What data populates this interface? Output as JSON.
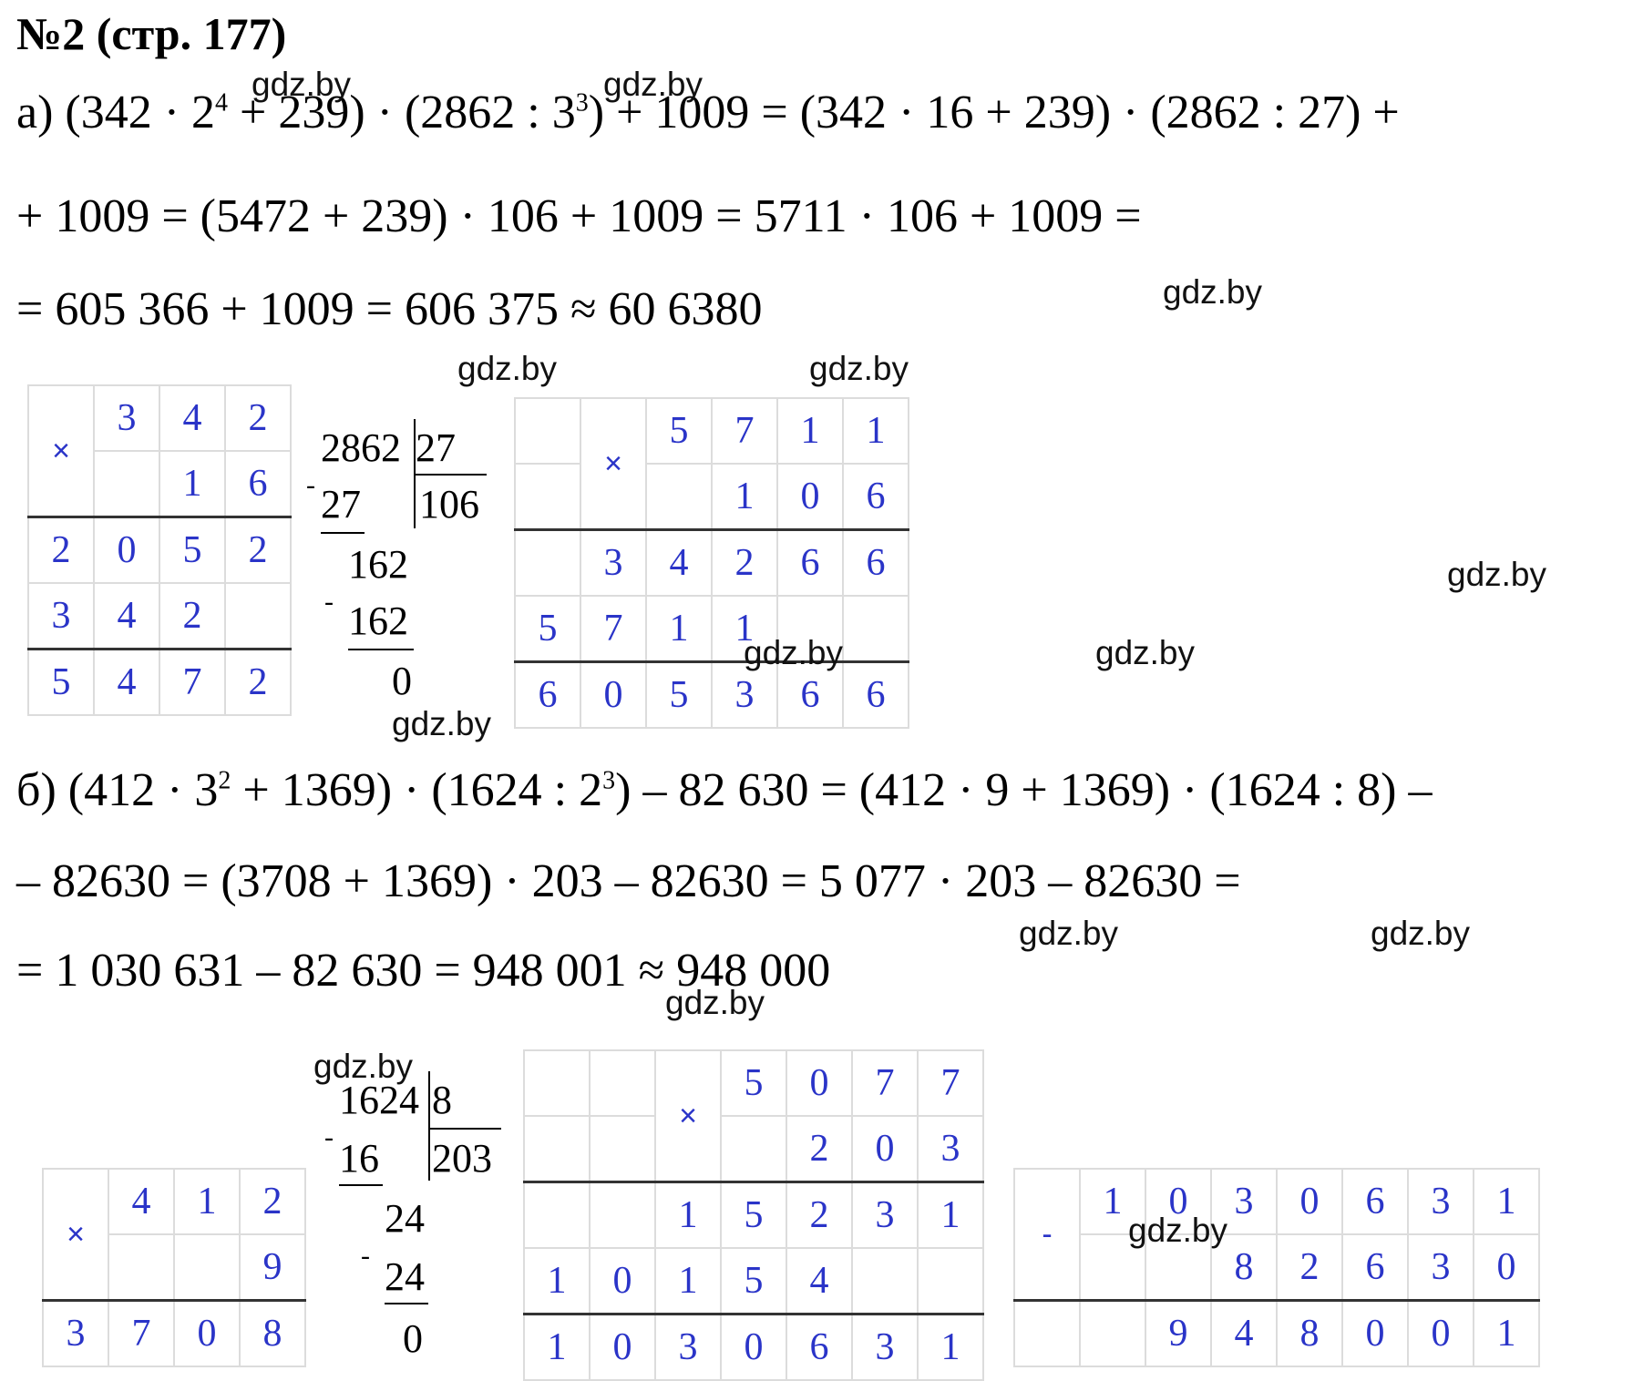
{
  "title": "№2 (стр. 177)",
  "watermark": "gdz.by",
  "part_a": {
    "line1": {
      "p1": "а) (342 · 2",
      "e1": "4",
      "p2": " + 239) · (2862 : 3",
      "e2": "3",
      "p3": ") + 1009 = (342 · 16 + 239) · (2862 : 27) +"
    },
    "line2": "+ 1009 = (5472 + 239) · 106 + 1009 = 5711 · 106 + 1009 =",
    "line3": "= 605 366 + 1009 = 606 375 ≈ 60 6380",
    "mult1": {
      "sign": "×",
      "rows": [
        [
          "",
          "3",
          "4",
          "2"
        ],
        [
          "",
          "",
          "1",
          "6"
        ],
        [
          "2",
          "0",
          "5",
          "2"
        ],
        [
          "3",
          "4",
          "2",
          ""
        ],
        [
          "5",
          "4",
          "7",
          "2"
        ]
      ]
    },
    "division": {
      "dividend": "2862",
      "divisor": "27",
      "quotient": "106",
      "s1": "27",
      "r1": "162",
      "s2": "162",
      "rem": "0",
      "minus": "-"
    },
    "mult2": {
      "sign": "×",
      "rows": [
        [
          "",
          "",
          "5",
          "7",
          "1",
          "1"
        ],
        [
          "",
          "",
          "",
          "1",
          "0",
          "6"
        ],
        [
          "",
          "3",
          "4",
          "2",
          "6",
          "6"
        ],
        [
          "5",
          "7",
          "1",
          "1",
          "",
          ""
        ],
        [
          "6",
          "0",
          "5",
          "3",
          "6",
          "6"
        ]
      ]
    }
  },
  "part_b": {
    "line1": {
      "p1": "б) (412 · 3",
      "e1": "2",
      "p2": " + 1369) · (1624 : 2",
      "e2": "3",
      "p3": ") – 82 630 = (412 · 9 + 1369) · (1624 : 8) –"
    },
    "line2": "– 82630 = (3708 + 1369) · 203 – 82630 = 5 077 · 203 – 82630 =",
    "line3": "= 1 030 631 – 82 630 = 948 001 ≈ 948 000",
    "mult1": {
      "sign": "×",
      "rows": [
        [
          "",
          "4",
          "1",
          "2"
        ],
        [
          "",
          "",
          "",
          "9"
        ],
        [
          "3",
          "7",
          "0",
          "8"
        ]
      ]
    },
    "division": {
      "dividend": "1624",
      "divisor": "8",
      "quotient": "203",
      "s1": "16",
      "r1": "24",
      "s2": "24",
      "rem": "0",
      "minus": "-"
    },
    "mult2": {
      "sign": "×",
      "rows": [
        [
          "",
          "",
          "",
          "5",
          "0",
          "7",
          "7"
        ],
        [
          "",
          "",
          "",
          "",
          "2",
          "0",
          "3"
        ],
        [
          "",
          "",
          "1",
          "5",
          "2",
          "3",
          "1"
        ],
        [
          "1",
          "0",
          "1",
          "5",
          "4",
          "",
          ""
        ],
        [
          "1",
          "0",
          "3",
          "0",
          "6",
          "3",
          "1"
        ]
      ]
    },
    "subtraction": {
      "sign": "-",
      "rows": [
        [
          "",
          "1",
          "0",
          "3",
          "0",
          "6",
          "3",
          "1"
        ],
        [
          "",
          "",
          "",
          "8",
          "2",
          "6",
          "3",
          "0"
        ],
        [
          "",
          "",
          "9",
          "4",
          "8",
          "0",
          "0",
          "1"
        ]
      ]
    }
  }
}
